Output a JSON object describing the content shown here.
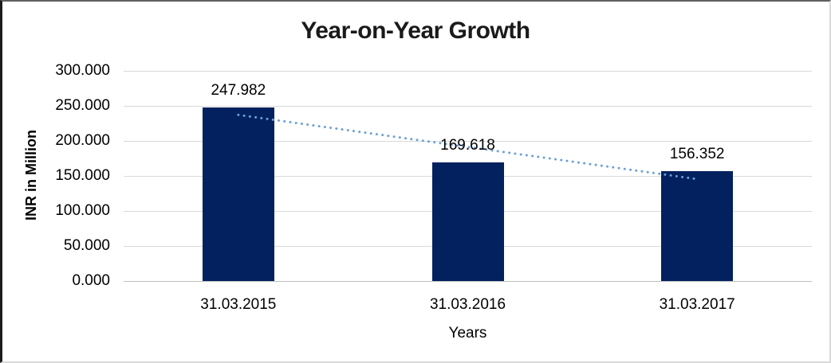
{
  "chart_data": {
    "type": "bar",
    "title": "Year-on-Year Growth",
    "categories": [
      "31.03.2015",
      "31.03.2016",
      "31.03.2017"
    ],
    "values": [
      247.982,
      169.618,
      156.352
    ],
    "data_labels": [
      "247.982",
      "169.618",
      "156.352"
    ],
    "xlabel": "Years",
    "ylabel": "INR in Million",
    "ylim": [
      0,
      300
    ],
    "ytick_step": 50,
    "ytick_values": [
      300,
      250,
      200,
      150,
      100,
      50,
      0
    ],
    "ytick_labels": [
      "300.000",
      "250.000",
      "200.000",
      "150.000",
      "100.000",
      "50.000",
      "0.000"
    ],
    "grid": true,
    "legend_position": "none",
    "trendline": {
      "type": "linear",
      "style": "dotted-round"
    },
    "colors": {
      "bar": "#02215E",
      "trendline": "#6DA0D5",
      "gridline": "#D9D9D9",
      "axis_line": "#BFBFBF",
      "title_text": "#1A1A1A",
      "label_text": "#000000"
    }
  }
}
